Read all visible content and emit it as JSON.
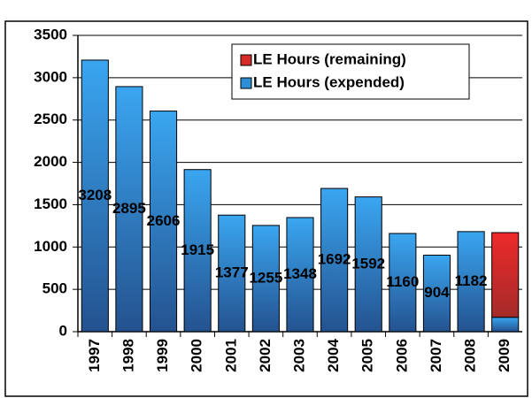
{
  "chart_data": {
    "type": "bar",
    "stacked": true,
    "categories": [
      "1997",
      "1998",
      "1999",
      "2000",
      "2001",
      "2002",
      "2003",
      "2004",
      "2005",
      "2006",
      "2007",
      "2008",
      "2009"
    ],
    "series": [
      {
        "name": "LE Hours (expended)",
        "color": "#2b8fd8",
        "values": [
          3208,
          2895,
          2606,
          1915,
          1377,
          1255,
          1348,
          1692,
          1592,
          1160,
          904,
          1182,
          170
        ],
        "value_labels": [
          "3208",
          "2895",
          "2606",
          "1915",
          "1377",
          "1255",
          "1348",
          "1692",
          "1592",
          "1160",
          "904",
          "1182",
          null
        ]
      },
      {
        "name": "LE Hours (remaining)",
        "color": "#d92a2a",
        "values": [
          null,
          null,
          null,
          null,
          null,
          null,
          null,
          null,
          null,
          null,
          null,
          null,
          1000
        ]
      }
    ],
    "ylim": [
      0,
      3500
    ],
    "yticks": [
      0,
      500,
      1000,
      1500,
      2000,
      2500,
      3000,
      3500
    ],
    "grid": true,
    "legend": "upper right"
  }
}
